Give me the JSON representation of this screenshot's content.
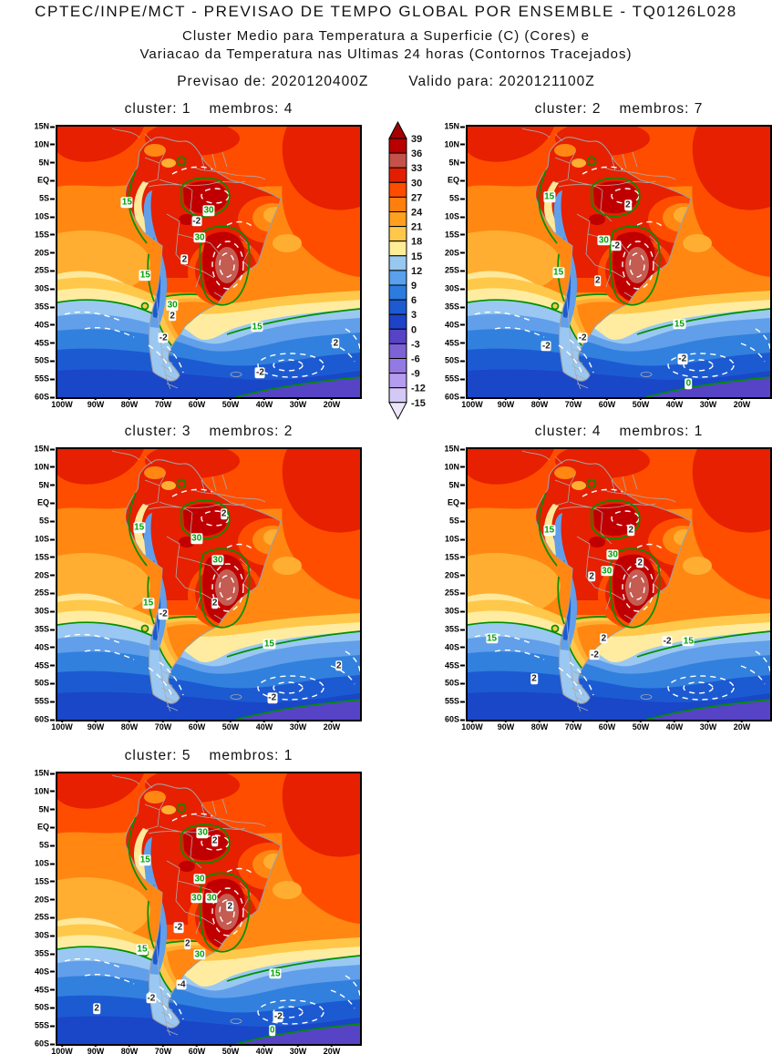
{
  "header": {
    "title": "CPTEC/INPE/MCT - PREVISAO DE TEMPO GLOBAL POR ENSEMBLE - TQ0126L028",
    "subtitle1": "Cluster Medio para Temperatura a Superficie (C) (Cores) e",
    "subtitle2": "Variacao da Temperatura nas Ultimas 24 horas (Contornos Tracejados)",
    "forecast_init": "Previsao de: 2020120400Z",
    "forecast_valid": "Valido para: 2020121100Z"
  },
  "chart_data": {
    "type": "heatmap",
    "title": "Cluster Medio para Temperatura a Superficie (C)",
    "variable_fill": "Temperatura a Superficie (C)",
    "variable_contour": "Variacao da Temperatura nas Ultimas 24 horas",
    "region": "South America",
    "lat_range": [
      "15N",
      "60S"
    ],
    "lon_range": [
      "100W",
      "12W"
    ],
    "axes": {
      "lat": [
        "15N",
        "10N",
        "5N",
        "EQ",
        "5S",
        "10S",
        "15S",
        "20S",
        "25S",
        "30S",
        "35S",
        "40S",
        "45S",
        "50S",
        "55S",
        "60S"
      ],
      "lon": [
        "100W",
        "90W",
        "80W",
        "70W",
        "60W",
        "50W",
        "40W",
        "30W",
        "20W"
      ]
    },
    "colorbar": {
      "units": "C",
      "levels": [
        "39",
        "36",
        "33",
        "30",
        "27",
        "24",
        "21",
        "18",
        "15",
        "12",
        "9",
        "6",
        "3",
        "0",
        "-3",
        "-6",
        "-9",
        "-12",
        "-15"
      ],
      "colors": [
        "#A30000",
        "#B80000",
        "#C4524A",
        "#E31E00",
        "#FF4D00",
        "#FF7F0E",
        "#FFA01E",
        "#FFC84A",
        "#FFEC96",
        "#96C8F0",
        "#5AA0EC",
        "#2C7CE0",
        "#1C5AD2",
        "#1E42C8",
        "#5743C6",
        "#7D62D6",
        "#9379E4",
        "#B49CEE",
        "#D4C8F6",
        "#ECE6FB"
      ]
    },
    "contours": {
      "solid_green_levels": [
        0,
        15,
        30
      ],
      "dashed_white_levels": [
        -4,
        -2,
        2
      ]
    },
    "panels": [
      {
        "cluster": 1,
        "membros": 4,
        "cluster_label": "cluster: 1",
        "membros_label": "membros: 4",
        "labels": [
          {
            "t": "15",
            "c": "g",
            "x": 23,
            "y": 28
          },
          {
            "t": "30",
            "c": "g",
            "x": 50,
            "y": 31
          },
          {
            "t": "-2",
            "c": "w",
            "x": 46,
            "y": 35
          },
          {
            "t": "30",
            "c": "g",
            "x": 47,
            "y": 41
          },
          {
            "t": "2",
            "c": "w",
            "x": 42,
            "y": 49
          },
          {
            "t": "15",
            "c": "g",
            "x": 29,
            "y": 55
          },
          {
            "t": "30",
            "c": "g",
            "x": 38,
            "y": 66
          },
          {
            "t": "2",
            "c": "w",
            "x": 38,
            "y": 70
          },
          {
            "t": "15",
            "c": "g",
            "x": 66,
            "y": 74
          },
          {
            "t": "-2",
            "c": "w",
            "x": 35,
            "y": 78
          },
          {
            "t": "2",
            "c": "w",
            "x": 92,
            "y": 80
          },
          {
            "t": "-2",
            "c": "w",
            "x": 67,
            "y": 91
          }
        ]
      },
      {
        "cluster": 2,
        "membros": 7,
        "cluster_label": "cluster: 2",
        "membros_label": "membros: 7",
        "labels": [
          {
            "t": "15",
            "c": "g",
            "x": 27,
            "y": 26
          },
          {
            "t": "2",
            "c": "w",
            "x": 53,
            "y": 29
          },
          {
            "t": "30",
            "c": "g",
            "x": 45,
            "y": 42
          },
          {
            "t": "-2",
            "c": "w",
            "x": 49,
            "y": 44
          },
          {
            "t": "15",
            "c": "g",
            "x": 30,
            "y": 54
          },
          {
            "t": "2",
            "c": "w",
            "x": 43,
            "y": 57
          },
          {
            "t": "-2",
            "c": "w",
            "x": 38,
            "y": 78
          },
          {
            "t": "-2",
            "c": "w",
            "x": 26,
            "y": 81
          },
          {
            "t": "15",
            "c": "g",
            "x": 70,
            "y": 73
          },
          {
            "t": "-2",
            "c": "w",
            "x": 71,
            "y": 86
          },
          {
            "t": "0",
            "c": "g",
            "x": 73,
            "y": 95
          }
        ]
      },
      {
        "cluster": 3,
        "membros": 2,
        "cluster_label": "cluster: 3",
        "membros_label": "membros: 2",
        "labels": [
          {
            "t": "2",
            "c": "w",
            "x": 55,
            "y": 24
          },
          {
            "t": "15",
            "c": "g",
            "x": 27,
            "y": 29
          },
          {
            "t": "30",
            "c": "g",
            "x": 46,
            "y": 33
          },
          {
            "t": "30",
            "c": "g",
            "x": 53,
            "y": 41
          },
          {
            "t": "2",
            "c": "w",
            "x": 52,
            "y": 57
          },
          {
            "t": "15",
            "c": "g",
            "x": 30,
            "y": 57
          },
          {
            "t": "-2",
            "c": "w",
            "x": 35,
            "y": 61
          },
          {
            "t": "15",
            "c": "g",
            "x": 70,
            "y": 72
          },
          {
            "t": "2",
            "c": "w",
            "x": 93,
            "y": 80
          },
          {
            "t": "-2",
            "c": "w",
            "x": 71,
            "y": 92
          }
        ]
      },
      {
        "cluster": 4,
        "membros": 1,
        "cluster_label": "cluster: 4",
        "membros_label": "membros: 1",
        "labels": [
          {
            "t": "15",
            "c": "g",
            "x": 27,
            "y": 30
          },
          {
            "t": "2",
            "c": "w",
            "x": 54,
            "y": 30
          },
          {
            "t": "30",
            "c": "g",
            "x": 48,
            "y": 39
          },
          {
            "t": "2",
            "c": "w",
            "x": 57,
            "y": 42
          },
          {
            "t": "30",
            "c": "g",
            "x": 46,
            "y": 45
          },
          {
            "t": "2",
            "c": "w",
            "x": 41,
            "y": 47
          },
          {
            "t": "15",
            "c": "g",
            "x": 8,
            "y": 70
          },
          {
            "t": "2",
            "c": "w",
            "x": 45,
            "y": 70
          },
          {
            "t": "-2",
            "c": "w",
            "x": 66,
            "y": 71
          },
          {
            "t": "15",
            "c": "g",
            "x": 73,
            "y": 71
          },
          {
            "t": "-2",
            "c": "w",
            "x": 42,
            "y": 76
          },
          {
            "t": "2",
            "c": "w",
            "x": 22,
            "y": 85
          }
        ]
      },
      {
        "cluster": 5,
        "membros": 1,
        "cluster_label": "cluster: 5",
        "membros_label": "membros: 1",
        "labels": [
          {
            "t": "30",
            "c": "g",
            "x": 48,
            "y": 22
          },
          {
            "t": "2",
            "c": "w",
            "x": 52,
            "y": 25
          },
          {
            "t": "15",
            "c": "g",
            "x": 29,
            "y": 32
          },
          {
            "t": "30",
            "c": "g",
            "x": 47,
            "y": 39
          },
          {
            "t": "30",
            "c": "g",
            "x": 46,
            "y": 46
          },
          {
            "t": "30",
            "c": "g",
            "x": 51,
            "y": 46
          },
          {
            "t": "2",
            "c": "w",
            "x": 57,
            "y": 49
          },
          {
            "t": "-2",
            "c": "w",
            "x": 40,
            "y": 57
          },
          {
            "t": "2",
            "c": "w",
            "x": 43,
            "y": 63
          },
          {
            "t": "30",
            "c": "g",
            "x": 47,
            "y": 67
          },
          {
            "t": "15",
            "c": "g",
            "x": 28,
            "y": 65
          },
          {
            "t": "15",
            "c": "g",
            "x": 72,
            "y": 74
          },
          {
            "t": "-4",
            "c": "w",
            "x": 41,
            "y": 78
          },
          {
            "t": "-2",
            "c": "w",
            "x": 31,
            "y": 83
          },
          {
            "t": "2",
            "c": "w",
            "x": 13,
            "y": 87
          },
          {
            "t": "-2",
            "c": "w",
            "x": 73,
            "y": 90
          },
          {
            "t": "0",
            "c": "g",
            "x": 71,
            "y": 95
          }
        ]
      }
    ]
  }
}
